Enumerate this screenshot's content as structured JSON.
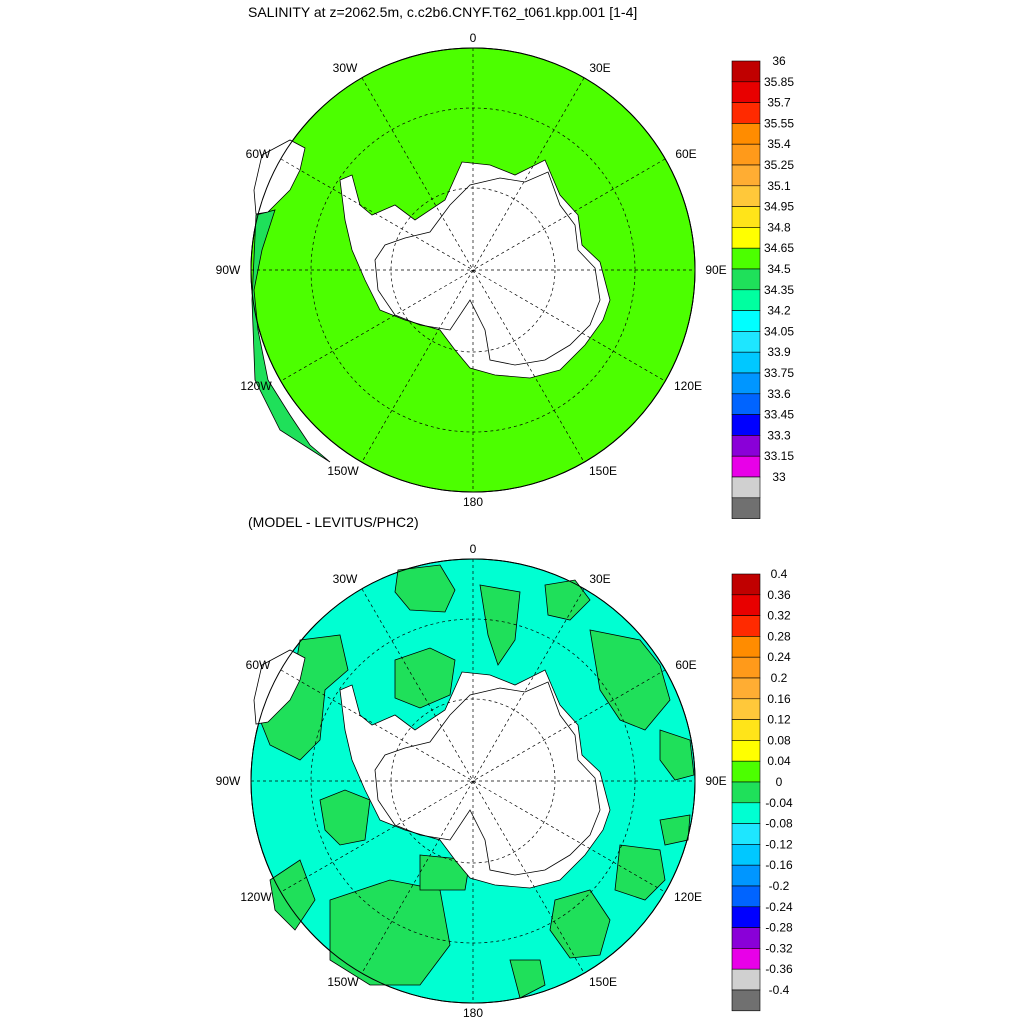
{
  "panels": [
    {
      "title": "SALINITY at z=2062.5m, c.c2b6.CNYF.T62_t061.kpp.001 [1-4]",
      "field_color": "#4cff00",
      "secondary_color": "#1fe05a",
      "colorbar": {
        "labels": [
          "36",
          "35.85",
          "35.7",
          "35.55",
          "35.4",
          "35.25",
          "35.1",
          "34.95",
          "34.8",
          "34.65",
          "34.5",
          "34.35",
          "34.2",
          "34.05",
          "33.9",
          "33.75",
          "33.6",
          "33.45",
          "33.3",
          "33.15",
          "33"
        ],
        "colors": [
          "#c00000",
          "#e80000",
          "#ff2a00",
          "#ff8c00",
          "#ff9a1a",
          "#ffad33",
          "#ffc83a",
          "#ffe419",
          "#ffff00",
          "#4cff00",
          "#1fe05a",
          "#00ffa0",
          "#00ffff",
          "#1ee6ff",
          "#00c8ff",
          "#0096ff",
          "#0064ff",
          "#0000ff",
          "#8a00d8",
          "#e800e8",
          "#d0d0d0",
          "#707070"
        ]
      }
    },
    {
      "title": "(MODEL - LEVITUS/PHC2)",
      "field_color": "#00ffd2",
      "secondary_color": "#1fe05a",
      "colorbar": {
        "labels": [
          "0.4",
          "0.36",
          "0.32",
          "0.28",
          "0.24",
          "0.2",
          "0.16",
          "0.12",
          "0.08",
          "0.04",
          "0",
          "-0.04",
          "-0.08",
          "-0.12",
          "-0.16",
          "-0.2",
          "-0.24",
          "-0.28",
          "-0.32",
          "-0.36",
          "-0.4"
        ],
        "colors": [
          "#c00000",
          "#e80000",
          "#ff2a00",
          "#ff8c00",
          "#ff9a1a",
          "#ffad33",
          "#ffc83a",
          "#ffe419",
          "#ffff00",
          "#4cff00",
          "#1fe05a",
          "#00ffd2",
          "#1ee6ff",
          "#00c8ff",
          "#0096ff",
          "#0064ff",
          "#0000ff",
          "#8a00d8",
          "#e800e8",
          "#d0d0d0",
          "#707070"
        ]
      }
    }
  ],
  "longitude_labels": [
    "0",
    "30E",
    "60E",
    "90E",
    "120E",
    "150E",
    "180",
    "150W",
    "120W",
    "90W",
    "60W",
    "30W"
  ],
  "ocean_fill_color": "#ffffff"
}
